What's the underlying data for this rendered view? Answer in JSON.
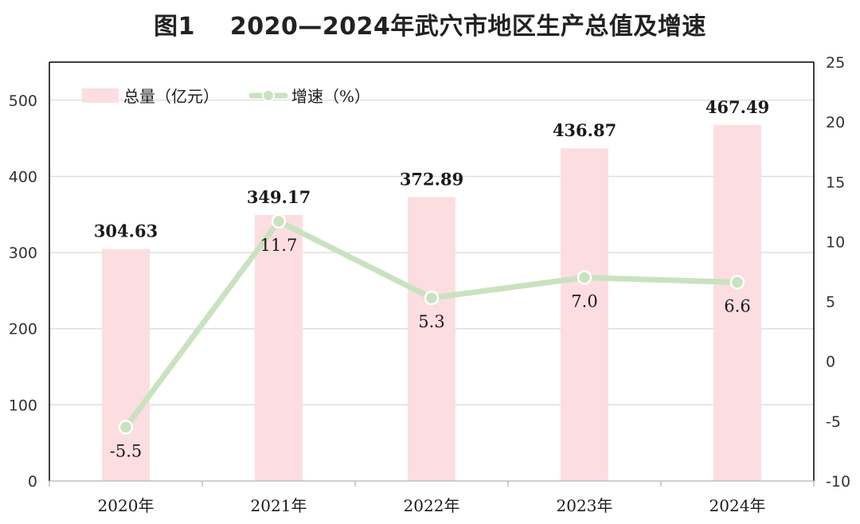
{
  "chart_data": {
    "type": "bar+line",
    "title": "图1    2020—2024年武穴市地区生产总值及增速",
    "categories": [
      "2020年",
      "2021年",
      "2022年",
      "2023年",
      "2024年"
    ],
    "series": [
      {
        "name": "总量（亿元）",
        "type": "bar",
        "axis": "left",
        "values": [
          304.63,
          349.17,
          372.89,
          436.87,
          467.49
        ],
        "labels": [
          "304.63",
          "349.17",
          "372.89",
          "436.87",
          "467.49"
        ]
      },
      {
        "name": "增速（%）",
        "type": "line",
        "axis": "right",
        "values": [
          -5.5,
          11.7,
          5.3,
          7.0,
          6.6
        ],
        "labels": [
          "-5.5",
          "11.7",
          "5.3",
          "7.0",
          "6.6"
        ]
      }
    ],
    "left_axis": {
      "ylim": [
        0,
        550
      ],
      "ticks": [
        0,
        100,
        200,
        300,
        400,
        500
      ],
      "tick_labels": [
        "0",
        "100",
        "200",
        "300",
        "400",
        "500"
      ]
    },
    "right_axis": {
      "ylim": [
        -10,
        25
      ],
      "ticks": [
        -10,
        -5,
        0,
        5,
        10,
        15,
        20,
        25
      ],
      "tick_labels": [
        "-10",
        "-5",
        "0",
        "5",
        "10",
        "15",
        "20",
        "25"
      ]
    },
    "grid": true,
    "legend_position": "top-left",
    "colors": {
      "bar": "#fcdde0",
      "line": "#c9e2c0",
      "marker_fill": "#c9e2c0",
      "marker_stroke": "#ffffff",
      "grid": "#d9d9d9",
      "axis": "#000000",
      "text": "#1a1a1a"
    }
  }
}
